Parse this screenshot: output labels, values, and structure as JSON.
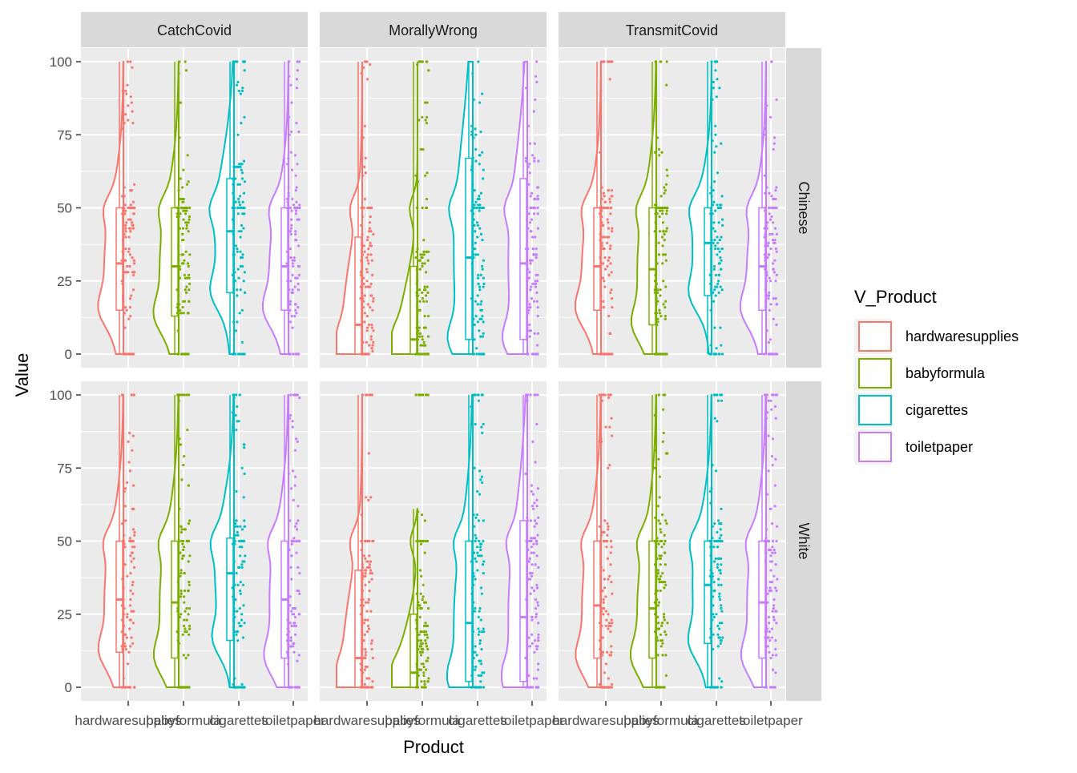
{
  "chart_data": {
    "type": "violin",
    "description_kind": "faceted half-violin + boxplot + jittered points (raincloud)",
    "xlabel": "Product",
    "ylabel": "Value",
    "ylim": [
      0,
      100
    ],
    "y_ticks": [
      0,
      25,
      50,
      75,
      100
    ],
    "categories": [
      "hardwaresupplies",
      "babyformula",
      "cigarettes",
      "toiletpaper"
    ],
    "legend": {
      "title": "V_Product",
      "position": "right",
      "entries": [
        {
          "label": "hardwaresupplies",
          "color": "#F8766D"
        },
        {
          "label": "babyformula",
          "color": "#7CAE00"
        },
        {
          "label": "cigarettes",
          "color": "#00BFC4"
        },
        {
          "label": "toiletpaper",
          "color": "#C77CFF"
        }
      ]
    },
    "facet_cols": [
      "CatchCovid",
      "MorallyWrong",
      "TransmitCovid"
    ],
    "facet_rows": [
      "Chinese",
      "White"
    ],
    "grid": true,
    "panels": [
      {
        "col": "CatchCovid",
        "row": "Chinese",
        "series": [
          {
            "name": "hardwaresupplies",
            "min": 0,
            "q1": 15,
            "median": 31,
            "q3": 50,
            "max": 100
          },
          {
            "name": "babyformula",
            "min": 0,
            "q1": 13,
            "median": 30,
            "q3": 50,
            "max": 100
          },
          {
            "name": "cigarettes",
            "min": 0,
            "q1": 21,
            "median": 42,
            "q3": 60,
            "max": 100
          },
          {
            "name": "toiletpaper",
            "min": 0,
            "q1": 15,
            "median": 30,
            "q3": 50,
            "max": 100
          }
        ]
      },
      {
        "col": "MorallyWrong",
        "row": "Chinese",
        "series": [
          {
            "name": "hardwaresupplies",
            "min": 0,
            "q1": 0,
            "median": 10,
            "q3": 40,
            "max": 100
          },
          {
            "name": "babyformula",
            "min": 0,
            "q1": 0,
            "median": 5,
            "q3": 30,
            "max": 100
          },
          {
            "name": "cigarettes",
            "min": 0,
            "q1": 5,
            "median": 33,
            "q3": 67,
            "max": 100
          },
          {
            "name": "toiletpaper",
            "min": 0,
            "q1": 5,
            "median": 31,
            "q3": 60,
            "max": 100
          }
        ]
      },
      {
        "col": "TransmitCovid",
        "row": "Chinese",
        "series": [
          {
            "name": "hardwaresupplies",
            "min": 0,
            "q1": 15,
            "median": 30,
            "q3": 50,
            "max": 100
          },
          {
            "name": "babyformula",
            "min": 0,
            "q1": 10,
            "median": 29,
            "q3": 50,
            "max": 100
          },
          {
            "name": "cigarettes",
            "min": 0,
            "q1": 20,
            "median": 38,
            "q3": 50,
            "max": 100
          },
          {
            "name": "toiletpaper",
            "min": 0,
            "q1": 15,
            "median": 30,
            "q3": 50,
            "max": 100
          }
        ]
      },
      {
        "col": "CatchCovid",
        "row": "White",
        "series": [
          {
            "name": "hardwaresupplies",
            "min": 0,
            "q1": 12,
            "median": 30,
            "q3": 50,
            "max": 100
          },
          {
            "name": "babyformula",
            "min": 0,
            "q1": 10,
            "median": 29,
            "q3": 50,
            "max": 100
          },
          {
            "name": "cigarettes",
            "min": 0,
            "q1": 16,
            "median": 39,
            "q3": 51,
            "max": 100
          },
          {
            "name": "toiletpaper",
            "min": 0,
            "q1": 10,
            "median": 30,
            "q3": 50,
            "max": 100
          }
        ]
      },
      {
        "col": "MorallyWrong",
        "row": "White",
        "series": [
          {
            "name": "hardwaresupplies",
            "min": 0,
            "q1": 0,
            "median": 10,
            "q3": 40,
            "max": 100
          },
          {
            "name": "babyformula",
            "min": 0,
            "q1": 0,
            "median": 5,
            "q3": 25,
            "max": 61
          },
          {
            "name": "cigarettes",
            "min": 0,
            "q1": 2,
            "median": 22,
            "q3": 50,
            "max": 100
          },
          {
            "name": "toiletpaper",
            "min": 0,
            "q1": 2,
            "median": 24,
            "q3": 57,
            "max": 100
          }
        ]
      },
      {
        "col": "TransmitCovid",
        "row": "White",
        "series": [
          {
            "name": "hardwaresupplies",
            "min": 0,
            "q1": 10,
            "median": 28,
            "q3": 50,
            "max": 100
          },
          {
            "name": "babyformula",
            "min": 0,
            "q1": 10,
            "median": 27,
            "q3": 50,
            "max": 100
          },
          {
            "name": "cigarettes",
            "min": 0,
            "q1": 15,
            "median": 35,
            "q3": 50,
            "max": 100
          },
          {
            "name": "toiletpaper",
            "min": 0,
            "q1": 10,
            "median": 29,
            "q3": 50,
            "max": 100
          }
        ]
      }
    ]
  }
}
